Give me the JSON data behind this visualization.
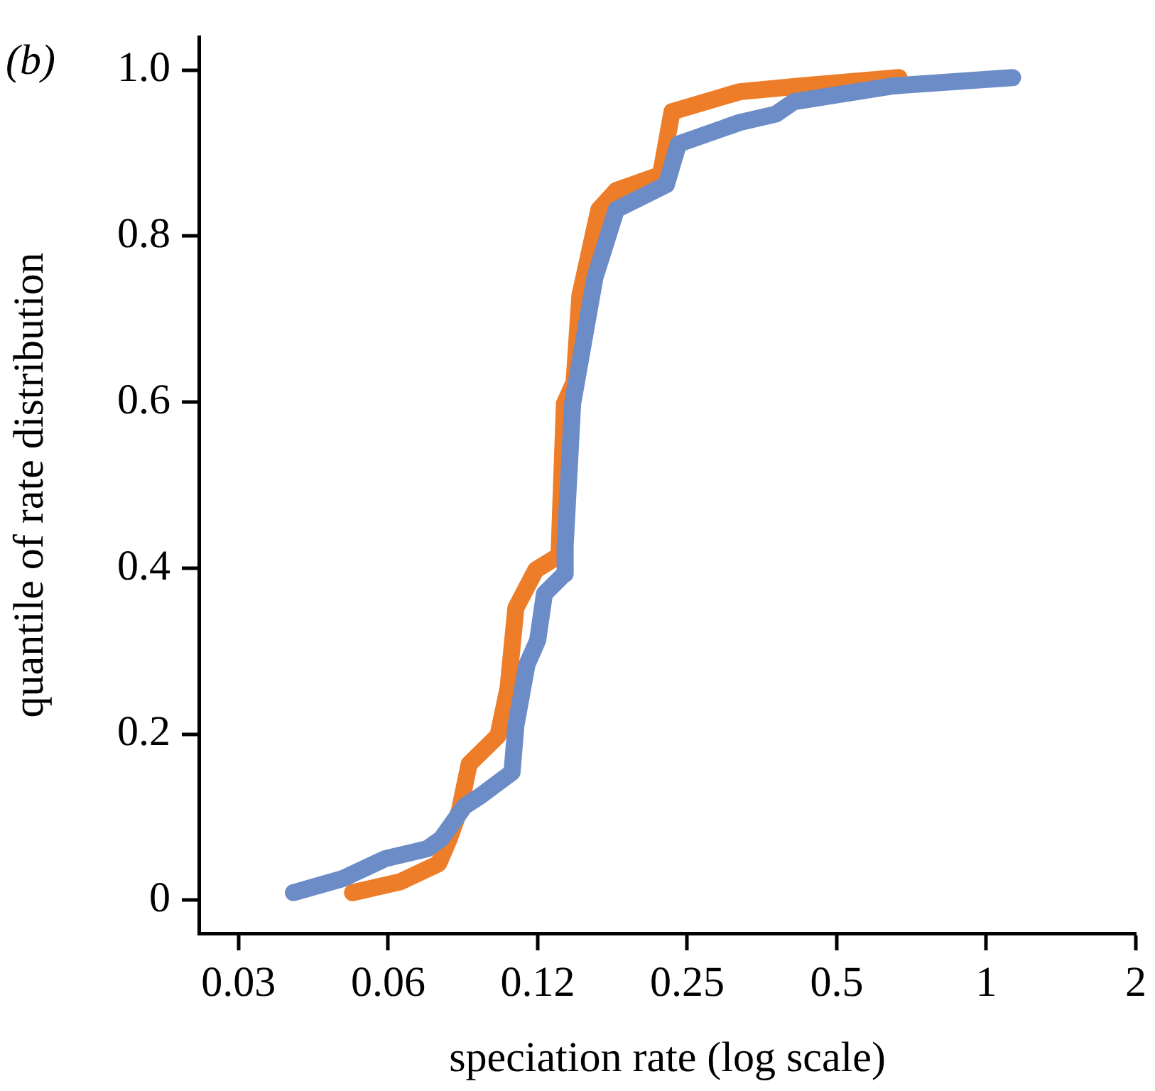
{
  "chart_data": {
    "type": "line",
    "title": "(b)",
    "xlabel": "speciation rate (log scale)",
    "ylabel": "quantile of rate distribution",
    "log": "x",
    "xlim": [
      0.026,
      2
    ],
    "xticks": [
      {
        "value": 0.03125,
        "label": "0.03"
      },
      {
        "value": 0.0625,
        "label": "0.06"
      },
      {
        "value": 0.125,
        "label": "0.12"
      },
      0.25,
      0.5,
      1,
      2
    ],
    "ylim": [
      -0.04,
      1.04
    ],
    "yticks": [
      0,
      {
        "value": 0.2,
        "label": "0.2"
      },
      {
        "value": 0.4,
        "label": "0.4"
      },
      {
        "value": 0.6,
        "label": "0.6"
      },
      {
        "value": 0.8,
        "label": "0.8"
      },
      {
        "value": 1,
        "label": "1.0"
      }
    ],
    "grid": false,
    "legend": false,
    "series": [
      {
        "color": "#6b8cc7",
        "x": [
          0.0403,
          0.0507,
          0.0617,
          0.075,
          0.08,
          0.089,
          0.0956,
          0.111,
          0.113,
          0.119,
          0.125,
          0.129,
          0.1415,
          0.142,
          0.147,
          0.163,
          0.18,
          0.227,
          0.24,
          0.319,
          0.377,
          0.41,
          0.65,
          1.13
        ],
        "values": [
          0.009,
          0.026,
          0.05,
          0.062,
          0.074,
          0.113,
          0.125,
          0.154,
          0.21,
          0.284,
          0.313,
          0.369,
          0.393,
          0.427,
          0.598,
          0.75,
          0.832,
          0.862,
          0.911,
          0.937,
          0.947,
          0.962,
          0.981,
          0.991
        ]
      },
      {
        "color": "#ee7d2a",
        "x": [
          0.053,
          0.066,
          0.079,
          0.083,
          0.087,
          0.091,
          0.104,
          0.109,
          0.113,
          0.124,
          0.138,
          0.1415,
          0.148,
          0.152,
          0.166,
          0.18,
          0.221,
          0.233,
          0.319,
          0.424,
          0.667
        ],
        "values": [
          0.009,
          0.022,
          0.044,
          0.074,
          0.108,
          0.164,
          0.198,
          0.256,
          0.352,
          0.398,
          0.415,
          0.598,
          0.624,
          0.728,
          0.832,
          0.855,
          0.874,
          0.95,
          0.974,
          0.981,
          0.991
        ]
      }
    ]
  }
}
